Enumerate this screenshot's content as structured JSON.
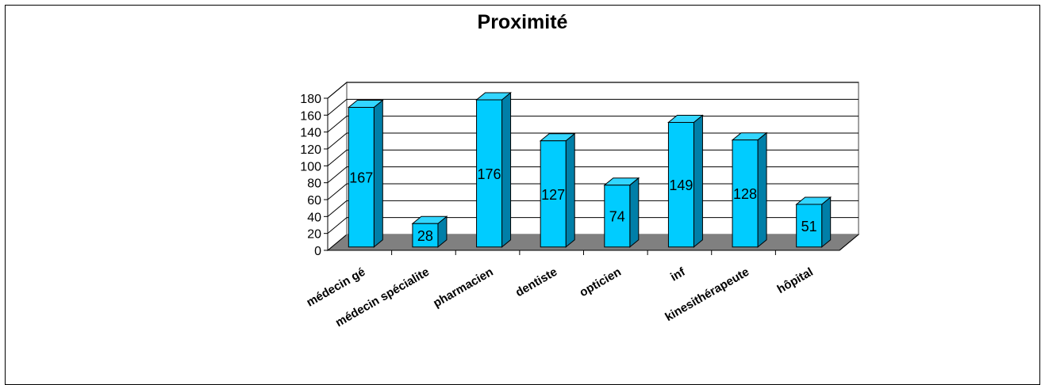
{
  "chart_data": {
    "type": "bar",
    "title": "Proximité",
    "categories": [
      "médecin gé",
      "médecin spécialite",
      "pharmacien",
      "dentiste",
      "opticien",
      "inf",
      "kinesithérapeute",
      "hôpital"
    ],
    "values": [
      167,
      28,
      176,
      127,
      74,
      149,
      128,
      51
    ],
    "ylim": [
      0,
      180
    ],
    "yticks": [
      "0",
      "20",
      "40",
      "60",
      "80",
      "100",
      "120",
      "140",
      "160",
      "180"
    ],
    "grid": true,
    "style": "3d-column",
    "colors": {
      "bar": "#00CCFF",
      "bar_side": "#007FA8",
      "bar_top": "#33D6FF",
      "floor": "#808080"
    }
  }
}
